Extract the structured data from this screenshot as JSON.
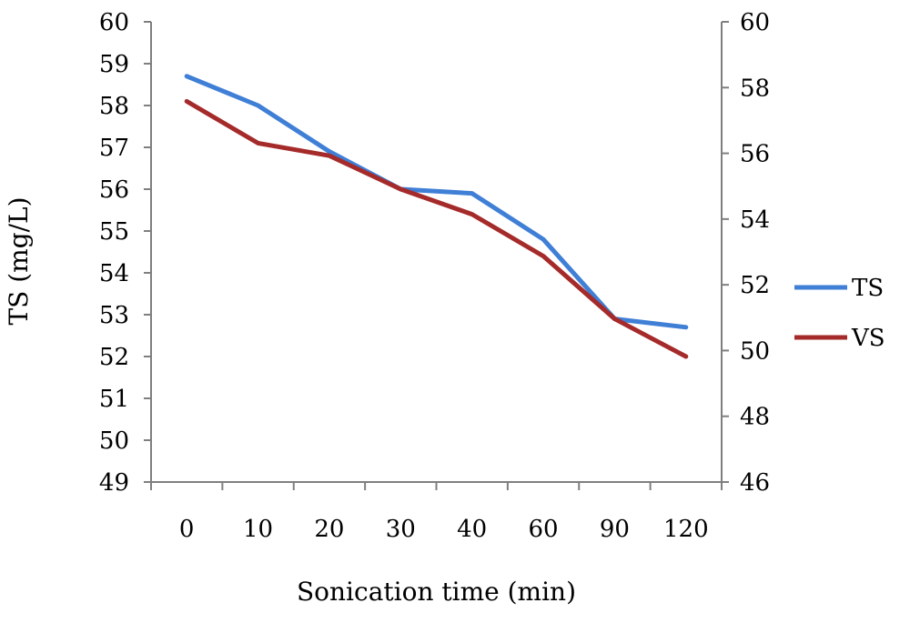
{
  "chart_data": {
    "type": "line",
    "categories": [
      "0",
      "10",
      "20",
      "30",
      "40",
      "60",
      "90",
      "120"
    ],
    "xlabel": "Sonication time (min)",
    "ylabel": "TS (mg/L)",
    "ylabel_right": "",
    "ylim": [
      49,
      60
    ],
    "ylim_right": [
      46,
      60
    ],
    "yticks": [
      "49",
      "50",
      "51",
      "52",
      "53",
      "54",
      "55",
      "56",
      "57",
      "58",
      "59",
      "60"
    ],
    "yticks_right": [
      "46",
      "48",
      "50",
      "52",
      "54",
      "56",
      "58",
      "60"
    ],
    "legend_position": "right",
    "grid": false,
    "series": [
      {
        "name": "TS",
        "axis": "left",
        "color": "#3f7fd6",
        "values": [
          58.7,
          58.0,
          56.9,
          56.0,
          55.9,
          54.8,
          52.9,
          52.7
        ]
      },
      {
        "name": "VS",
        "axis": "left",
        "color": "#a52a2a",
        "values": [
          58.1,
          57.1,
          56.8,
          56.0,
          55.4,
          54.4,
          52.9,
          52.0
        ]
      }
    ]
  }
}
